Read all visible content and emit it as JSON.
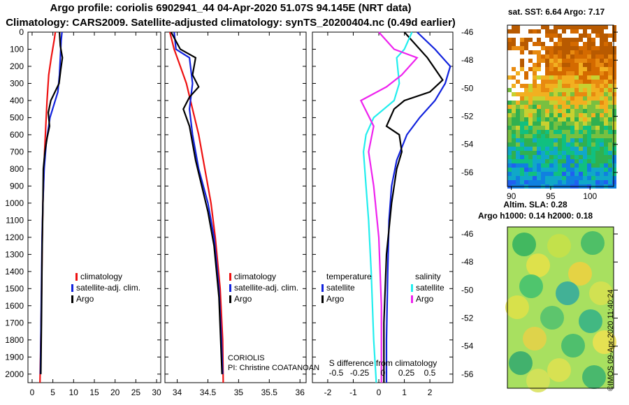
{
  "header": {
    "line1": "Argo profile: coriolis 6902941_44 04-Apr-2020 51.07S 94.145E (NRT data)",
    "line2": "Climatology: CARS2009. Satellite-adjusted climatology: synTS_20200404.nc (0.49d earlier)"
  },
  "colors": {
    "climatology": "#ee1111",
    "satellite": "#1122dd",
    "argo": "#000000",
    "cyan": "#22eeee",
    "magenta": "#ee22ee"
  },
  "chart_data": [
    {
      "type": "line",
      "name": "temperature-profile",
      "xlim": [
        -1,
        31
      ],
      "ylim": [
        2050,
        0
      ],
      "xticks": [
        "0",
        "5",
        "10",
        "15",
        "20",
        "25",
        "30"
      ],
      "xtick_values": [
        0,
        5,
        10,
        15,
        20,
        25,
        30
      ],
      "yticks": [
        "0",
        "100",
        "200",
        "300",
        "400",
        "500",
        "600",
        "700",
        "800",
        "900",
        "1000",
        "1100",
        "1200",
        "1300",
        "1400",
        "1500",
        "1600",
        "1700",
        "1800",
        "1900",
        "2000"
      ],
      "ytick_values": [
        0,
        100,
        200,
        300,
        400,
        500,
        600,
        700,
        800,
        900,
        1000,
        1100,
        1200,
        1300,
        1400,
        1500,
        1600,
        1700,
        1800,
        1900,
        2000
      ],
      "legend": [
        "climatology",
        "satellite-adj. clim.",
        "Argo"
      ],
      "series": [
        {
          "name": "climatology",
          "color_key": "climatology",
          "x": [
            5.6,
            5.3,
            4.6,
            4.0,
            3.6,
            3.3,
            3.0,
            2.8,
            2.6,
            2.45,
            2.3,
            2.1,
            1.9
          ],
          "y": [
            0,
            50,
            150,
            250,
            400,
            550,
            700,
            850,
            1000,
            1200,
            1500,
            1800,
            2050
          ]
        },
        {
          "name": "satellite-adj. clim.",
          "color_key": "satellite",
          "x": [
            7.2,
            7.0,
            6.8,
            6.6,
            6.2,
            4.3,
            3.4,
            2.9,
            2.6,
            2.4,
            2.25,
            2.1,
            2.0
          ],
          "y": [
            0,
            50,
            150,
            250,
            350,
            500,
            650,
            800,
            1000,
            1200,
            1500,
            1800,
            2000
          ]
        },
        {
          "name": "Argo",
          "color_key": "argo",
          "x": [
            6.6,
            6.8,
            7.3,
            6.9,
            6.5,
            4.5,
            3.9,
            4.2,
            3.6,
            3.1,
            2.7,
            2.6,
            2.4,
            2.25,
            2.1
          ],
          "y": [
            0,
            80,
            150,
            220,
            300,
            400,
            470,
            550,
            620,
            700,
            800,
            1000,
            1300,
            1700,
            2000
          ]
        }
      ]
    },
    {
      "type": "line",
      "name": "salinity-profile",
      "xlim": [
        33.8,
        36.1
      ],
      "ylim": [
        2050,
        0
      ],
      "xticks": [
        "34",
        "34.5",
        "35",
        "35.5",
        "36"
      ],
      "xtick_values": [
        34,
        34.5,
        35,
        35.5,
        36
      ],
      "legend": [
        "climatology",
        "satellite-adj. clim.",
        "Argo"
      ],
      "series": [
        {
          "name": "climatology",
          "color_key": "climatology",
          "x": [
            33.88,
            33.95,
            34.05,
            34.15,
            34.25,
            34.35,
            34.45,
            34.55,
            34.62,
            34.7,
            34.74,
            34.75
          ],
          "y": [
            0,
            100,
            200,
            300,
            450,
            600,
            800,
            1000,
            1200,
            1500,
            1800,
            2050
          ]
        },
        {
          "name": "satellite-adj. clim.",
          "color_key": "satellite",
          "x": [
            33.95,
            33.98,
            34.2,
            34.25,
            34.2,
            34.25,
            34.35,
            34.5,
            34.6,
            34.68,
            34.72,
            34.74
          ],
          "y": [
            0,
            100,
            150,
            300,
            450,
            600,
            800,
            1000,
            1200,
            1500,
            1800,
            2000
          ]
        },
        {
          "name": "Argo",
          "color_key": "argo",
          "x": [
            33.9,
            34.05,
            34.3,
            34.25,
            34.35,
            34.2,
            34.1,
            34.2,
            34.25,
            34.3,
            34.4,
            34.5,
            34.6,
            34.68,
            34.73
          ],
          "y": [
            0,
            100,
            150,
            250,
            320,
            380,
            450,
            550,
            650,
            750,
            900,
            1050,
            1250,
            1550,
            2000
          ]
        }
      ]
    },
    {
      "type": "line",
      "name": "difference-from-climatology",
      "xlim": [
        -2.6,
        2.9
      ],
      "ylim": [
        2050,
        0
      ],
      "xticks": [
        "-2",
        "-1",
        "0",
        "1",
        "2"
      ],
      "xtick_values": [
        -2,
        -1,
        0,
        1,
        2
      ],
      "top_xlabel": "S difference from climatology",
      "top_xticks": [
        "-0.5",
        "-0.25",
        "0",
        "0.25",
        "0.5"
      ],
      "top_xtick_values": [
        -0.5,
        -0.25,
        0,
        0.25,
        0.5
      ],
      "legend_left_title": "temperature",
      "legend_right_title": "salinity",
      "legend": [
        "satellite",
        "Argo",
        "satellite",
        "Argo"
      ],
      "series": [
        {
          "name": "T satellite",
          "color_key": "satellite",
          "x": [
            1.5,
            2.2,
            2.8,
            2.6,
            2.2,
            1.6,
            1.1,
            0.7,
            0.5,
            0.4,
            0.35,
            0.3,
            0.3
          ],
          "y": [
            0,
            100,
            200,
            300,
            400,
            500,
            600,
            750,
            900,
            1100,
            1400,
            1800,
            2050
          ]
        },
        {
          "name": "T Argo",
          "color_key": "argo",
          "x": [
            1.0,
            1.9,
            2.5,
            2.0,
            1.0,
            0.6,
            0.3,
            0.8,
            0.9,
            0.7,
            0.5,
            0.3,
            0.2,
            0.2
          ],
          "y": [
            0,
            150,
            280,
            350,
            400,
            450,
            550,
            600,
            700,
            800,
            1000,
            1300,
            1700,
            2050
          ]
        },
        {
          "name": "S satellite",
          "color_key": "cyan",
          "x": [
            1.3,
            1.0,
            0.7,
            0.8,
            0.6,
            -0.2,
            -0.5,
            -0.6,
            -0.5,
            -0.4,
            -0.3,
            -0.2,
            -0.1
          ],
          "y": [
            0,
            100,
            150,
            300,
            400,
            500,
            600,
            700,
            900,
            1100,
            1400,
            1800,
            2050
          ]
        },
        {
          "name": "S Argo",
          "color_key": "magenta",
          "x": [
            0.0,
            0.6,
            1.5,
            0.9,
            0.3,
            -0.7,
            -0.2,
            -0.4,
            -0.2,
            0.0,
            0.1,
            0.1
          ],
          "y": [
            0,
            100,
            150,
            250,
            320,
            400,
            550,
            700,
            900,
            1200,
            1600,
            2050
          ]
        }
      ]
    },
    {
      "type": "heatmap",
      "name": "sat-sst-map",
      "title": "sat. SST: 6.64 Argo: 7.17",
      "xticks": [
        "90",
        "95",
        "100"
      ],
      "yticks": [
        "-46",
        "-48",
        "-50",
        "-52",
        "-54",
        "-56"
      ]
    },
    {
      "type": "heatmap",
      "name": "altim-sla-map",
      "title_line1": "Altim. SLA: 0.28",
      "title_line2": "Argo h1000: 0.14 h2000: 0.18",
      "yticks": [
        "-46",
        "-48",
        "-50",
        "-52",
        "-54",
        "-56"
      ]
    }
  ],
  "legends": {
    "climatology": "climatology",
    "satellite_adj": "satellite-adj. clim.",
    "argo": "Argo",
    "temperature": "temperature",
    "salinity": "salinity",
    "satellite": "satellite"
  },
  "credits": {
    "agency": "CORIOLIS",
    "pi": "PI: Christine COATANOAN",
    "imos": "©IMOS 09-Apr-2020 11:40:24"
  }
}
